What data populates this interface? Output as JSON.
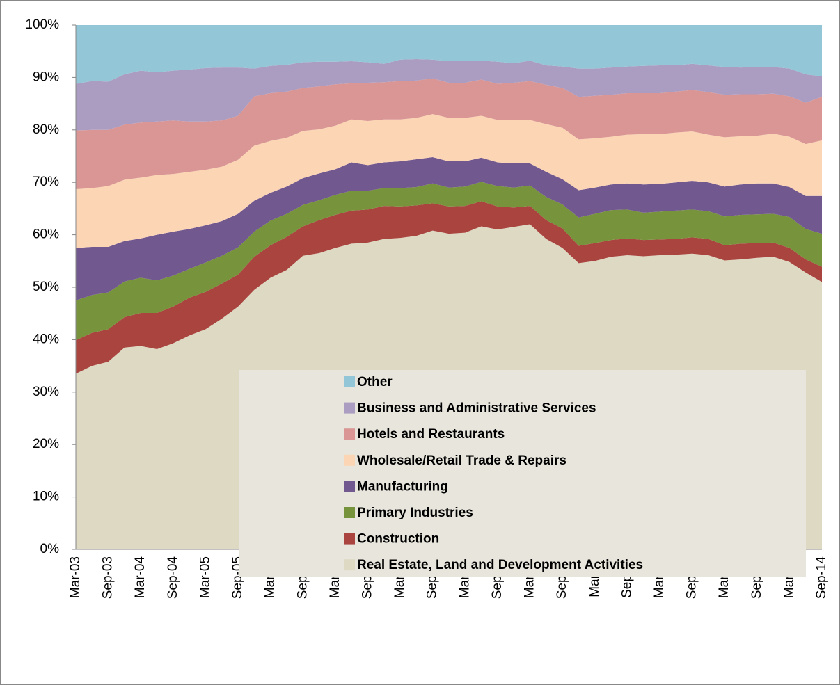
{
  "chart_data": {
    "type": "stacked-area",
    "categories": [
      "Mar-03",
      null,
      "Sep-03",
      null,
      "Mar-04",
      null,
      "Sep-04",
      null,
      "Mar-05",
      null,
      "Sep-05",
      null,
      "Mar-06",
      null,
      "Sep-06",
      null,
      "Mar-07",
      null,
      "Sep-07",
      null,
      "Mar-08",
      null,
      "Sep-08",
      null,
      "Mar-09",
      null,
      "Sep-09",
      null,
      "Mar-10",
      null,
      "Sep-10",
      null,
      "Mar-11",
      null,
      "Sep-11",
      null,
      "Mar-12",
      null,
      "Sep-12",
      null,
      "Mar-13",
      null,
      "Sep-13",
      null,
      "Mar-14",
      null,
      "Sep-14"
    ],
    "series": [
      {
        "name": "Real Estate, Land and Development Activities",
        "color": "#ddd9c3",
        "values": [
          33.5,
          35,
          35.8,
          38.5,
          38.8,
          38.2,
          39.3,
          40.8,
          42,
          44,
          46.3,
          49.5,
          51.8,
          53.3,
          56,
          56.5,
          57.5,
          58.3,
          58.5,
          59.2,
          59.4,
          59.8,
          60.8,
          60.2,
          60.4,
          61.6,
          61,
          61.5,
          62,
          59.2,
          57.5,
          54.6,
          55,
          55.8,
          56.1,
          55.9,
          56.1,
          56.2,
          56.4,
          56.1,
          55.1,
          55.3,
          55.6,
          55.8,
          54.8,
          52.8,
          51
        ]
      },
      {
        "name": "Construction",
        "color": "#a9443f",
        "values": [
          6.4,
          6.3,
          6.2,
          5.8,
          6.3,
          6.9,
          7.0,
          7.2,
          7.1,
          6.7,
          6.1,
          6.3,
          6.2,
          6.3,
          5.6,
          6.3,
          6.3,
          6.3,
          6.3,
          6.3,
          6.0,
          5.8,
          5.2,
          5.2,
          5.1,
          4.8,
          4.4,
          3.7,
          3.5,
          3.6,
          3.7,
          3.3,
          3.4,
          3.2,
          3.2,
          3.1,
          3.0,
          3.0,
          3.1,
          3.1,
          2.9,
          3.0,
          2.8,
          2.7,
          2.7,
          2.5,
          2.9
        ]
      },
      {
        "name": "Primary Industries",
        "color": "#77933c",
        "values": [
          7.6,
          7.2,
          7.0,
          6.8,
          6.7,
          6.2,
          5.9,
          5.5,
          5.6,
          5.3,
          5.2,
          4.8,
          4.7,
          4.4,
          4.1,
          3.8,
          3.8,
          3.8,
          3.6,
          3.4,
          3.5,
          3.5,
          3.8,
          3.6,
          3.7,
          3.7,
          3.9,
          3.8,
          3.9,
          4.4,
          4.6,
          5.4,
          5.6,
          5.7,
          5.5,
          5.2,
          5.3,
          5.4,
          5.3,
          5.3,
          5.5,
          5.5,
          5.5,
          5.5,
          5.9,
          5.8,
          6.3
        ]
      },
      {
        "name": "Manufacturing",
        "color": "#71588f",
        "values": [
          10.0,
          9.2,
          8.7,
          7.7,
          7.5,
          8.7,
          8.4,
          7.6,
          7.1,
          6.6,
          6.4,
          5.9,
          5.3,
          5.2,
          5.1,
          5.1,
          4.9,
          5.4,
          4.9,
          4.9,
          5.1,
          5.3,
          5.0,
          5.0,
          4.8,
          4.6,
          4.5,
          4.6,
          4.2,
          4.8,
          4.8,
          5.2,
          5.0,
          4.9,
          5.0,
          5.4,
          5.3,
          5.4,
          5.5,
          5.5,
          5.7,
          5.8,
          5.9,
          5.8,
          5.7,
          6.3,
          7.2
        ]
      },
      {
        "name": "Wholesale/Retail Trade & Repairs",
        "color": "#fcd5b5",
        "values": [
          11.2,
          11.2,
          11.6,
          11.7,
          11.6,
          11.4,
          11.0,
          10.9,
          10.6,
          10.4,
          10.3,
          10.5,
          9.9,
          9.3,
          9.0,
          8.4,
          8.3,
          8.2,
          8.4,
          8.2,
          8.0,
          7.9,
          8.2,
          8.3,
          8.3,
          8.0,
          8.1,
          8.3,
          8.3,
          9.1,
          9.8,
          9.7,
          9.4,
          9.1,
          9.3,
          9.6,
          9.5,
          9.5,
          9.4,
          9.1,
          9.4,
          9.2,
          9.1,
          9.5,
          9.6,
          9.9,
          10.6
        ]
      },
      {
        "name": "Hotels and Restaurants",
        "color": "#d99694",
        "values": [
          11.2,
          11.1,
          10.7,
          10.5,
          10.5,
          10.2,
          10.2,
          9.6,
          9.2,
          8.8,
          8.4,
          9.4,
          9.1,
          8.8,
          8.2,
          8.2,
          7.9,
          6.9,
          7.3,
          7.1,
          7.3,
          7.1,
          6.8,
          6.7,
          6.7,
          6.9,
          6.9,
          7.1,
          7.4,
          7.5,
          7.6,
          8.1,
          8.1,
          8.0,
          7.9,
          7.8,
          7.8,
          7.8,
          7.9,
          8.1,
          8.1,
          8.0,
          7.9,
          7.6,
          7.7,
          7.9,
          8.3
        ]
      },
      {
        "name": "Business and Administrative Services",
        "color": "#ab9cc1",
        "values": [
          8.9,
          9.3,
          9.2,
          9.6,
          9.9,
          9.4,
          9.5,
          9.9,
          10.2,
          10.1,
          9.2,
          5.3,
          5.2,
          5.1,
          4.9,
          4.7,
          4.3,
          4.2,
          3.9,
          3.5,
          4.1,
          4.1,
          3.6,
          4.1,
          4.1,
          3.6,
          4.2,
          3.7,
          3.9,
          3.7,
          4.1,
          5.4,
          5.2,
          5.2,
          5.1,
          5.2,
          5.3,
          5.0,
          5.0,
          5.1,
          5.3,
          5.1,
          5.2,
          5.1,
          5.3,
          5.4,
          3.9
        ]
      },
      {
        "name": "Other",
        "color": "#93c6d6",
        "values": [
          11.2,
          10.7,
          10.8,
          9.4,
          8.7,
          9.0,
          8.7,
          8.5,
          8.2,
          8.1,
          8.1,
          8.3,
          7.8,
          7.6,
          7.1,
          7.0,
          7.0,
          6.9,
          7.1,
          7.4,
          6.6,
          6.5,
          6.6,
          6.9,
          6.9,
          6.8,
          7.0,
          7.3,
          6.8,
          7.7,
          7.9,
          8.3,
          8.3,
          8.1,
          7.9,
          7.8,
          7.7,
          7.7,
          7.4,
          7.7,
          8.0,
          8.1,
          8.0,
          8.0,
          8.3,
          9.4,
          9.8
        ]
      }
    ],
    "ylim": [
      0,
      100
    ],
    "yticks": [
      {
        "value": 0,
        "label": "0%"
      },
      {
        "value": 10,
        "label": "10%"
      },
      {
        "value": 20,
        "label": "20%"
      },
      {
        "value": 30,
        "label": "30%"
      },
      {
        "value": 40,
        "label": "40%"
      },
      {
        "value": 50,
        "label": "50%"
      },
      {
        "value": 60,
        "label": "60%"
      },
      {
        "value": 70,
        "label": "70%"
      },
      {
        "value": 80,
        "label": "80%"
      },
      {
        "value": 90,
        "label": "90%"
      },
      {
        "value": 100,
        "label": "100%"
      }
    ],
    "grid": false,
    "legend": "lower-center"
  }
}
